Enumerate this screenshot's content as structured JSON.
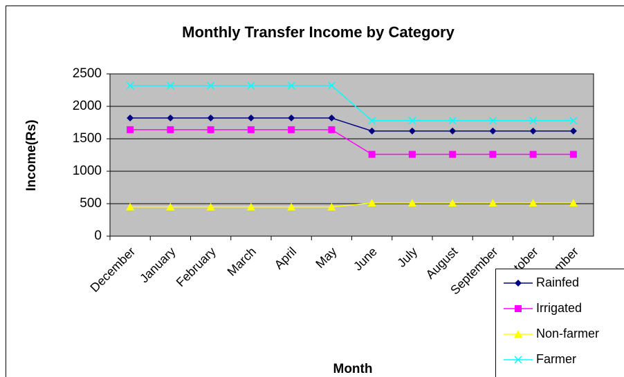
{
  "chart_data": {
    "type": "line",
    "title": "Monthly Transfer Income by Category",
    "x_label": "Month",
    "y_label": "Income(Rs)",
    "categories": [
      "December",
      "January",
      "February",
      "March",
      "April",
      "May",
      "June",
      "July",
      "August",
      "September",
      "October",
      "November"
    ],
    "series": [
      {
        "name": "Rainfed",
        "color": "#000080",
        "marker": "diamond",
        "values": [
          1820,
          1820,
          1820,
          1820,
          1820,
          1820,
          1620,
          1620,
          1620,
          1620,
          1620,
          1620
        ]
      },
      {
        "name": "Irrigated",
        "color": "#ff00ff",
        "marker": "square",
        "values": [
          1640,
          1640,
          1640,
          1640,
          1640,
          1640,
          1260,
          1260,
          1260,
          1260,
          1260,
          1260
        ]
      },
      {
        "name": "Non-farmer",
        "color": "#ffff00",
        "marker": "triangle",
        "values": [
          450,
          450,
          450,
          450,
          450,
          450,
          510,
          510,
          510,
          510,
          510,
          510
        ]
      },
      {
        "name": "Farmer",
        "color": "#00ffff",
        "marker": "x",
        "values": [
          2320,
          2320,
          2320,
          2320,
          2320,
          2320,
          1780,
          1780,
          1780,
          1780,
          1780,
          1780
        ]
      }
    ],
    "ylim": [
      0,
      2500
    ],
    "yticks": [
      0,
      500,
      1000,
      1500,
      2000,
      2500
    ],
    "grid": true,
    "plot_background": "#c0c0c0"
  }
}
